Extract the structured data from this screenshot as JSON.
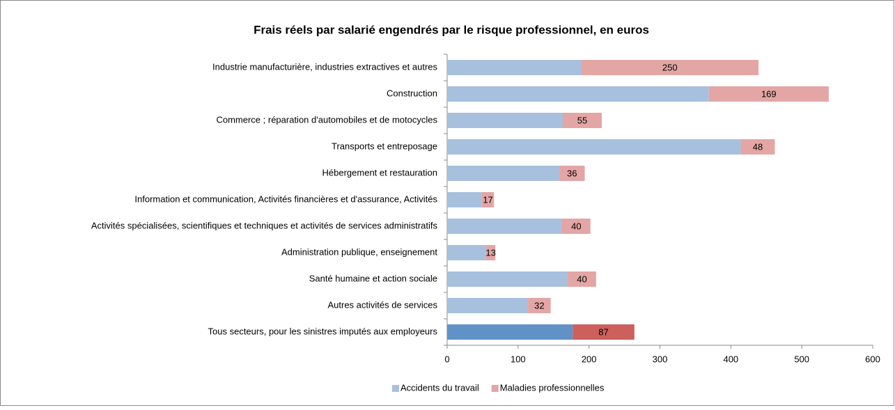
{
  "chart_data": {
    "type": "stacked-barh",
    "title": "Frais réels par salarié engendrés par le risque professionnel, en euros",
    "categories": [
      "Industrie manufacturière, industries extractives  et autres",
      "Construction",
      "Commerce ; réparation d'automobiles et de motocycles",
      "Transports et entreposage",
      "Hébergement et restauration",
      "Information et communication, Activités financières et d'assurance, Activités",
      "Activités spécialisées, scientifiques et techniques et activités de services administratifs",
      "Administration publique, enseignement",
      "Santé humaine et action sociale",
      "Autres activités de services",
      "Tous secteurs, pour les sinistres imputés aux employeurs"
    ],
    "series": [
      {
        "name": "Accidents du travail",
        "color": "#a7c0de",
        "colors": [
          "#a7c0de",
          "#a7c0de",
          "#a7c0de",
          "#a7c0de",
          "#a7c0de",
          "#a7c0de",
          "#a7c0de",
          "#a7c0de",
          "#a7c0de",
          "#a7c0de",
          "#6092c7"
        ],
        "values": [
          189,
          369,
          163,
          414,
          158,
          49,
          162,
          55,
          170,
          114,
          177
        ]
      },
      {
        "name": "Maladies professionnelles",
        "color": "#e3a6a5",
        "colors": [
          "#e3a6a5",
          "#e3a6a5",
          "#e3a6a5",
          "#e3a6a5",
          "#e3a6a5",
          "#e3a6a5",
          "#e3a6a5",
          "#e3a6a5",
          "#e3a6a5",
          "#e3a6a5",
          "#cd5f5c"
        ],
        "values": [
          250,
          169,
          55,
          48,
          36,
          17,
          40,
          13,
          40,
          32,
          87
        ],
        "data_labels": true
      }
    ],
    "xlim": [
      0,
      600
    ],
    "xticks": [
      0,
      100,
      200,
      300,
      400,
      500,
      600
    ],
    "legend": "bottom"
  }
}
